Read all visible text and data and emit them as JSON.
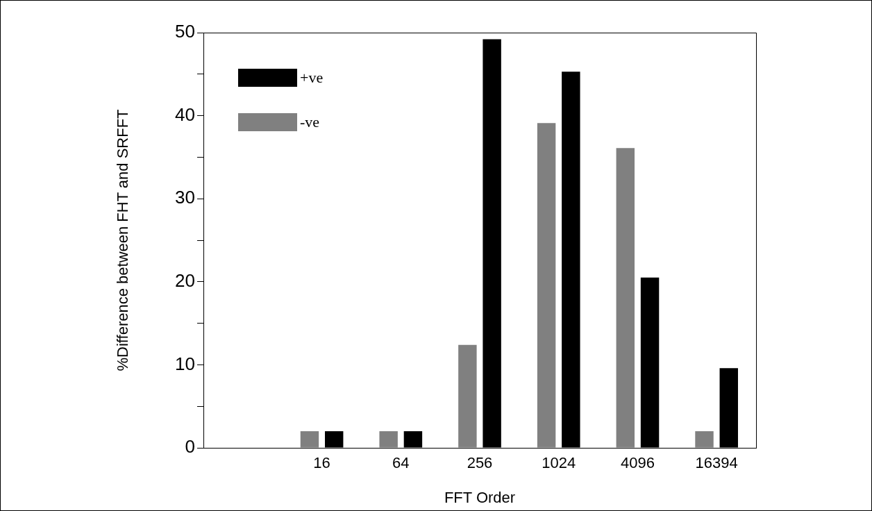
{
  "chart_data": {
    "type": "bar",
    "xlabel": "FFT Order",
    "ylabel": "%Difference between FHT and SRFFT",
    "categories": [
      null,
      "16",
      "64",
      "256",
      "1024",
      "4096",
      "16394"
    ],
    "series": [
      {
        "name": "-ve",
        "color": "#808080",
        "values": [
          null,
          2,
          2,
          12.4,
          39.1,
          36.1,
          2
        ]
      },
      {
        "name": "+ve",
        "color": "#000000",
        "values": [
          null,
          2,
          2,
          49.2,
          45.3,
          20.5,
          9.6
        ]
      }
    ],
    "ylim": [
      0,
      50
    ],
    "yticks": [
      0,
      {
        "value": 5,
        "label": null
      },
      10,
      {
        "value": 15,
        "label": null
      },
      20,
      {
        "value": 25,
        "label": null
      },
      30,
      {
        "value": 35,
        "label": null
      },
      40,
      {
        "value": 45,
        "label": null
      },
      50
    ],
    "grid": false,
    "legend": "top left"
  }
}
